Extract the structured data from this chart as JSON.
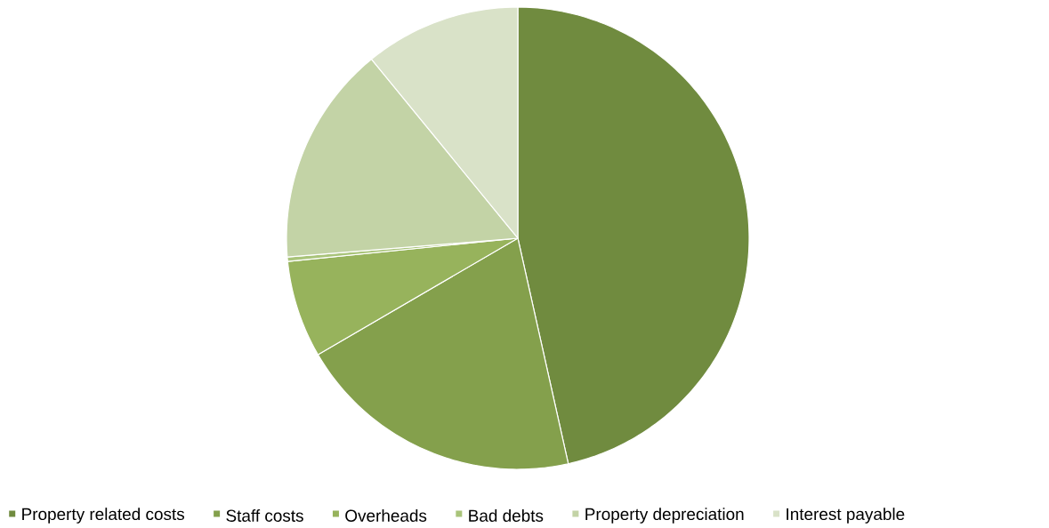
{
  "chart_data": {
    "type": "pie",
    "categories": [
      "Property related costs",
      "Staff costs",
      "Overheads",
      "Bad debts",
      "Property depreciation",
      "Interest payable"
    ],
    "values": [
      46.5,
      20.1,
      6.8,
      0.3,
      15.4,
      10.9
    ],
    "colors": [
      "#708b3f",
      "#84a04c",
      "#97b35c",
      "#a9c47a",
      "#c3d3a6",
      "#d9e2c8"
    ],
    "legend": "bottom"
  }
}
